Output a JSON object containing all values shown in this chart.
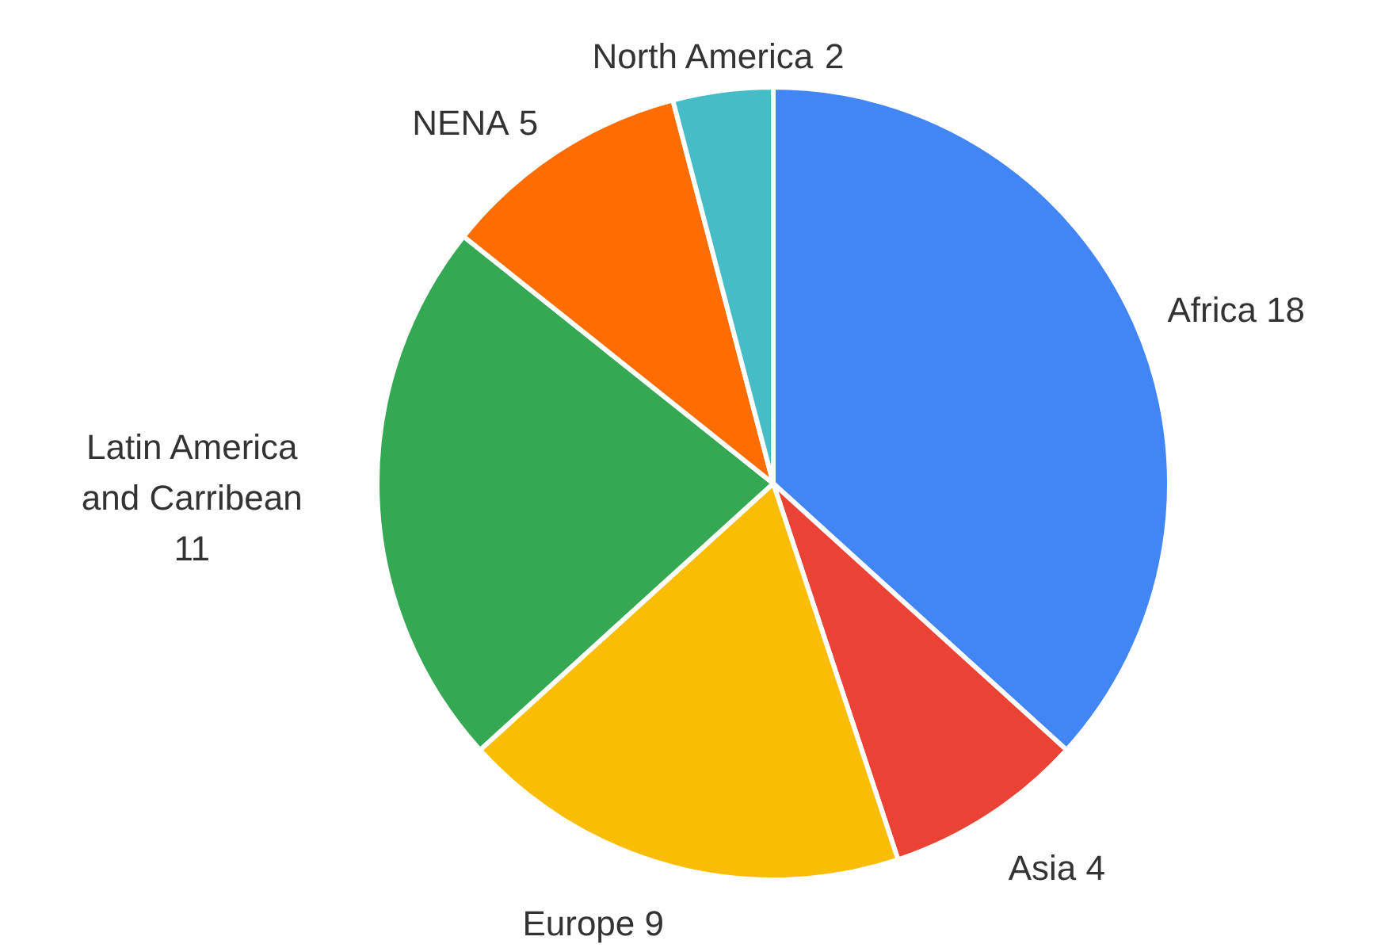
{
  "chart_data": {
    "type": "pie",
    "categories": [
      "Africa",
      "Asia",
      "Europe",
      "Latin America and Carribean",
      "NENA",
      "North America"
    ],
    "values": [
      18,
      4,
      9,
      11,
      5,
      2
    ],
    "colors": [
      "#4285f4",
      "#ea4335",
      "#fbbc04",
      "#34a853",
      "#ff6d01",
      "#46bdc6"
    ],
    "data_labels": true
  }
}
